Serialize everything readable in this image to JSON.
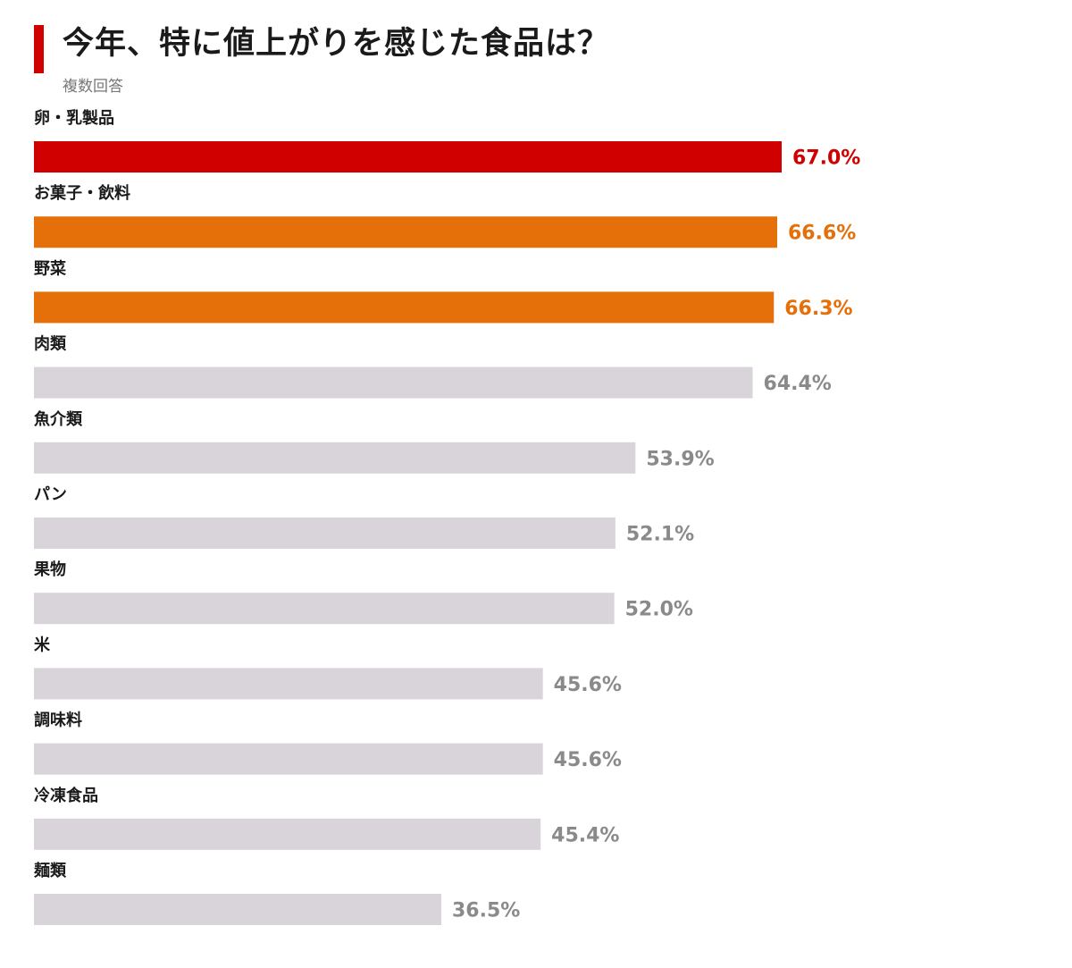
{
  "chart_data": {
    "type": "bar",
    "orientation": "horizontal",
    "title": "今年、特に値上がりを感じた食品は？",
    "subtitle": "複数回答",
    "categories": [
      "卵・乳製品",
      "お菓子・飲料",
      "野菜",
      "肉類",
      "魚介類",
      "パン",
      "果物",
      "米",
      "調味料",
      "冷凍食品",
      "麺類"
    ],
    "values": [
      67.0,
      66.6,
      66.3,
      64.4,
      53.9,
      52.1,
      52.0,
      45.6,
      45.6,
      45.4,
      36.5
    ],
    "value_labels": [
      "67.0%",
      "66.6%",
      "66.3%",
      "64.4%",
      "53.9%",
      "52.1%",
      "52.0%",
      "45.6%",
      "45.6%",
      "45.4%",
      "36.5%"
    ],
    "unit": "%",
    "xlim": [
      0,
      100
    ],
    "grid": false,
    "colors": {
      "accent": "#d10000",
      "highlight": "#e56f09",
      "default": "#d9d3da",
      "default_text": "#8a8a8a"
    },
    "bar_colors": [
      "accent",
      "highlight",
      "highlight",
      "default",
      "default",
      "default",
      "default",
      "default",
      "default",
      "default",
      "default"
    ]
  }
}
